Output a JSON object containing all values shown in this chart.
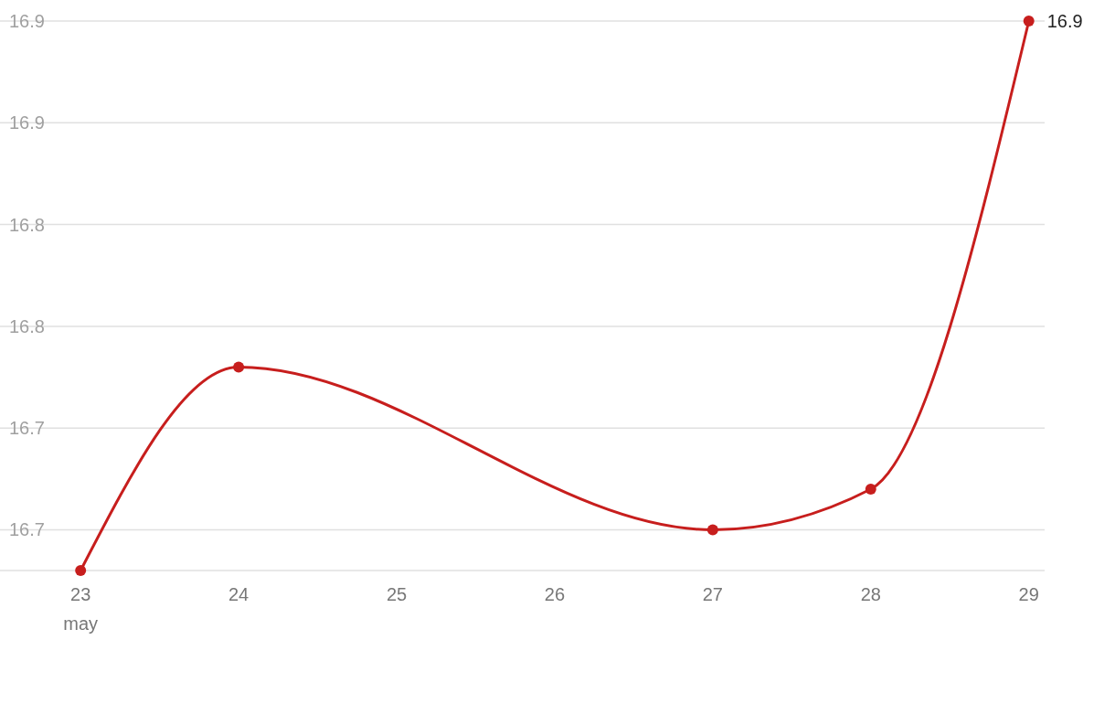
{
  "chart_data": {
    "type": "line",
    "x": [
      23,
      24,
      27,
      28,
      29
    ],
    "series": [
      {
        "color": "#c71e1d",
        "values": [
          16.63,
          16.73,
          16.65,
          16.67,
          16.9
        ],
        "value_labels": [
          null,
          null,
          null,
          null,
          "16.9"
        ]
      }
    ],
    "xlim": [
      22.49,
      29.1
    ],
    "xticks": [
      {
        "value": 23,
        "label": "23 may"
      },
      24,
      25,
      26,
      27,
      28,
      29
    ],
    "ylim": [
      16.63,
      16.9
    ],
    "yticks": [
      {
        "value": 16.65,
        "label": "16.7"
      },
      {
        "value": 16.7,
        "label": "16.7"
      },
      {
        "value": 16.75,
        "label": "16.8"
      },
      {
        "value": 16.8,
        "label": "16.8"
      },
      {
        "value": 16.85,
        "label": "16.9"
      },
      {
        "value": 16.9,
        "label": "16.9"
      }
    ],
    "grid": "y",
    "marker": "circle",
    "line_style": "solid"
  }
}
